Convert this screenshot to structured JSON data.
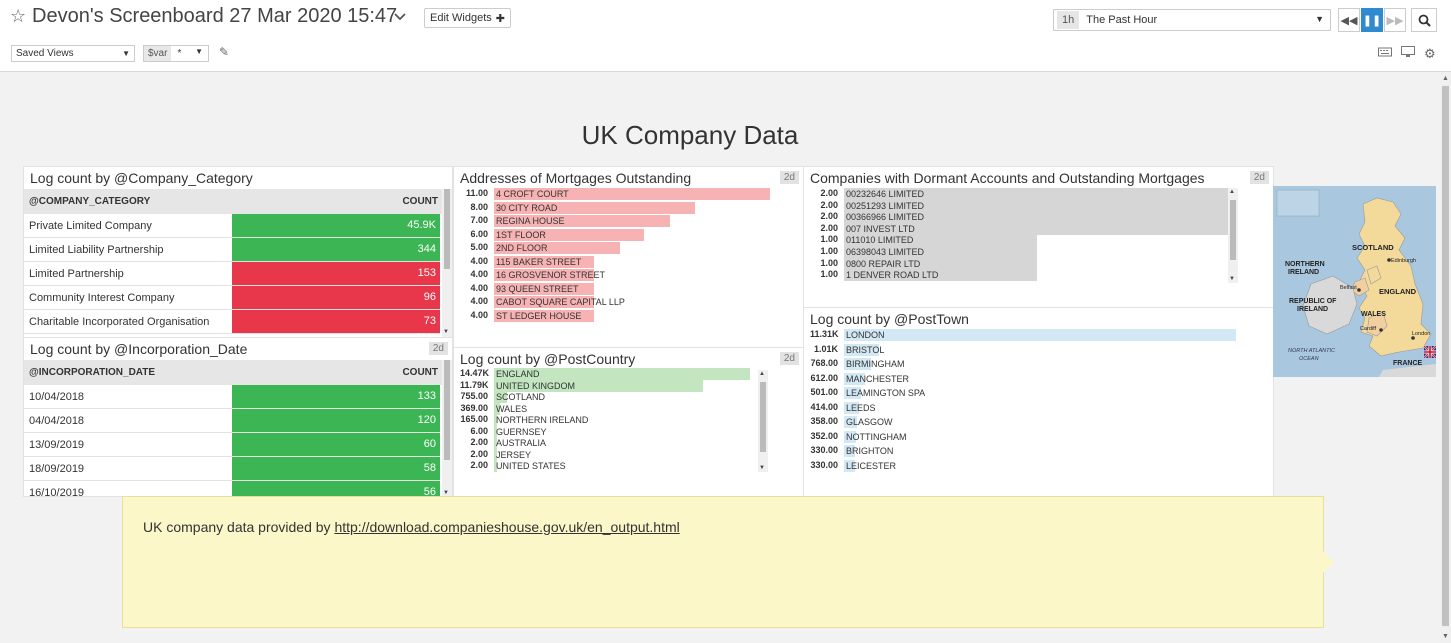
{
  "header": {
    "title": "Devon's Screenboard 27 Mar 2020 15:47",
    "edit_widgets": "Edit Widgets",
    "time_badge": "1h",
    "time_label": "The Past Hour",
    "saved_views": "Saved Views",
    "var_name": "$var",
    "var_value": "*"
  },
  "dashboard_title": "UK Company Data",
  "company_category": {
    "title": "Log count by @Company_Category",
    "col1": "@COMPANY_CATEGORY",
    "col2": "COUNT",
    "rows": [
      {
        "label": "Private Limited Company",
        "value": "45.9K",
        "color": "green"
      },
      {
        "label": "Limited Liability Partnership",
        "value": "344",
        "color": "green"
      },
      {
        "label": "Limited Partnership",
        "value": "153",
        "color": "red"
      },
      {
        "label": "Community Interest Company",
        "value": "96",
        "color": "red"
      },
      {
        "label": "Charitable Incorporated Organisation",
        "value": "73",
        "color": "red"
      }
    ]
  },
  "incorporation_date": {
    "title": "Log count by @Incorporation_Date",
    "badge": "2d",
    "col1": "@INCORPORATION_DATE",
    "col2": "COUNT",
    "rows": [
      {
        "label": "10/04/2018",
        "value": "133"
      },
      {
        "label": "04/04/2018",
        "value": "120"
      },
      {
        "label": "13/09/2019",
        "value": "60"
      },
      {
        "label": "18/09/2019",
        "value": "58"
      },
      {
        "label": "16/10/2019",
        "value": "56"
      }
    ]
  },
  "mortgages": {
    "title": "Addresses of Mortgages Outstanding",
    "badge": "2d",
    "color": "#f7b3b3",
    "rows": [
      {
        "value": "11.00",
        "label": "4 CROFT COURT",
        "frac": 1.0
      },
      {
        "value": "8.00",
        "label": "30 CITY ROAD",
        "frac": 0.727
      },
      {
        "value": "7.00",
        "label": "REGINA HOUSE",
        "frac": 0.636
      },
      {
        "value": "6.00",
        "label": "1ST FLOOR",
        "frac": 0.545
      },
      {
        "value": "5.00",
        "label": "2ND FLOOR",
        "frac": 0.455
      },
      {
        "value": "4.00",
        "label": "115 BAKER STREET",
        "frac": 0.364
      },
      {
        "value": "4.00",
        "label": "16 GROSVENOR STREET",
        "frac": 0.364
      },
      {
        "value": "4.00",
        "label": "93 QUEEN STREET",
        "frac": 0.364
      },
      {
        "value": "4.00",
        "label": "CABOT SQUARE CAPITAL LLP",
        "frac": 0.364
      },
      {
        "value": "4.00",
        "label": "ST LEDGER HOUSE",
        "frac": 0.364
      }
    ]
  },
  "post_country": {
    "title": "Log count by @PostCountry",
    "badge": "2d",
    "color": "#c3e6c0",
    "rows": [
      {
        "value": "14.47K",
        "label": "ENGLAND",
        "frac": 1.0
      },
      {
        "value": "11.79K",
        "label": "UNITED KINGDOM",
        "frac": 0.815
      },
      {
        "value": "755.00",
        "label": "SCOTLAND",
        "frac": 0.052
      },
      {
        "value": "369.00",
        "label": "WALES",
        "frac": 0.025
      },
      {
        "value": "165.00",
        "label": "NORTHERN IRELAND",
        "frac": 0.011
      },
      {
        "value": "6.00",
        "label": "GUERNSEY",
        "frac": 0.0
      },
      {
        "value": "2.00",
        "label": "AUSTRALIA",
        "frac": 0.0
      },
      {
        "value": "2.00",
        "label": "JERSEY",
        "frac": 0.0
      },
      {
        "value": "2.00",
        "label": "UNITED STATES",
        "frac": 0.0
      }
    ]
  },
  "dormant": {
    "title": "Companies with Dormant Accounts and Outstanding Mortgages",
    "badge": "2d",
    "color": "#d6d6d6",
    "rows": [
      {
        "value": "2.00",
        "label": "00232646 LIMITED",
        "frac": 1.0
      },
      {
        "value": "2.00",
        "label": "00251293 LIMITED",
        "frac": 1.0
      },
      {
        "value": "2.00",
        "label": "00366966 LIMITED",
        "frac": 1.0
      },
      {
        "value": "2.00",
        "label": "007 INVEST LTD",
        "frac": 1.0
      },
      {
        "value": "1.00",
        "label": "011010 LIMITED",
        "frac": 0.5
      },
      {
        "value": "1.00",
        "label": "06398043 LIMITED",
        "frac": 0.5
      },
      {
        "value": "1.00",
        "label": "0800 REPAIR LTD",
        "frac": 0.5
      },
      {
        "value": "1.00",
        "label": "1 DENVER ROAD LTD",
        "frac": 0.5
      }
    ]
  },
  "post_town": {
    "title": "Log count by @PostTown",
    "color": "#d3e8f5",
    "rows": [
      {
        "value": "11.31K",
        "label": "LONDON",
        "frac": 1.0
      },
      {
        "value": "1.01K",
        "label": "BRISTOL",
        "frac": 0.089
      },
      {
        "value": "768.00",
        "label": "BIRMINGHAM",
        "frac": 0.068
      },
      {
        "value": "612.00",
        "label": "MANCHESTER",
        "frac": 0.054
      },
      {
        "value": "501.00",
        "label": "LEAMINGTON SPA",
        "frac": 0.044
      },
      {
        "value": "414.00",
        "label": "LEEDS",
        "frac": 0.037
      },
      {
        "value": "358.00",
        "label": "GLASGOW",
        "frac": 0.032
      },
      {
        "value": "352.00",
        "label": "NOTTINGHAM",
        "frac": 0.031
      },
      {
        "value": "330.00",
        "label": "BRIGHTON",
        "frac": 0.029
      },
      {
        "value": "330.00",
        "label": "LEICESTER",
        "frac": 0.029
      }
    ]
  },
  "map": {
    "scotland": "SCOTLAND",
    "edinburgh": "Edinburgh",
    "northern_ireland_1": "NORTHERN",
    "northern_ireland_2": "IRELAND",
    "belfast": "Belfast",
    "roi_1": "REPUBLIC OF",
    "roi_2": "IRELAND",
    "england": "ENGLAND",
    "wales": "WALES",
    "cardiff": "Cardiff",
    "london": "London",
    "ocean_1": "NORTH ATLANTIC",
    "ocean_2": "OCEAN",
    "france": "FRANCE"
  },
  "note": {
    "prefix": "UK company data provided by ",
    "link": "http://download.companieshouse.gov.uk/en_output.html"
  }
}
